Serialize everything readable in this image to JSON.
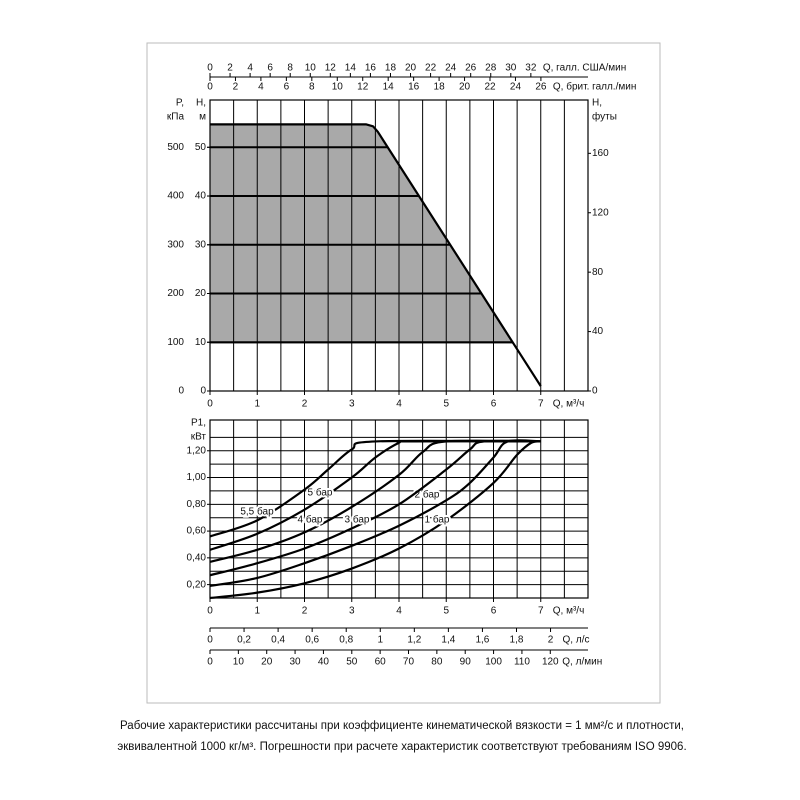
{
  "chart_data": [
    {
      "type": "line",
      "smooth": false,
      "x_label": "Q, м³/ч",
      "xlim": [
        0,
        8
      ],
      "xticks": [
        0,
        1,
        2,
        3,
        4,
        5,
        6,
        7
      ],
      "xminor": [
        0.5,
        1.5,
        2.5,
        3.5,
        4.5,
        5.5,
        6.5,
        7.5
      ],
      "extra_x_axes": [
        {
          "label": "Q, галл. США/мин",
          "side": "top",
          "xlim": [
            0,
            37.7
          ],
          "xticks": [
            0,
            2,
            4,
            6,
            8,
            10,
            12,
            14,
            16,
            18,
            20,
            22,
            24,
            26,
            28,
            30,
            32
          ]
        },
        {
          "label": "Q, брит. галл./мин",
          "side": "top",
          "xlim": [
            0,
            29.7
          ],
          "xticks": [
            0,
            2,
            4,
            6,
            8,
            10,
            12,
            14,
            16,
            18,
            20,
            22,
            24,
            26
          ]
        }
      ],
      "yaxes": [
        {
          "label": [
            "P,",
            "кПа"
          ],
          "side": "left",
          "ylim": [
            0,
            597
          ],
          "yticks": [
            0,
            100,
            200,
            300,
            400,
            500
          ],
          "grid": false
        },
        {
          "label": [
            "H,",
            "м"
          ],
          "side": "left",
          "ylim": [
            0,
            59.7
          ],
          "yticks": [
            0,
            10,
            20,
            30,
            40,
            50
          ],
          "grid": true
        },
        {
          "label": [
            "H,",
            "футы"
          ],
          "side": "right",
          "ylim": [
            0,
            195.9
          ],
          "yticks": [
            0,
            40,
            80,
            120,
            160
          ],
          "grid": false
        }
      ],
      "area_floor": 10,
      "area_color": "#a9a9a9",
      "series": [
        {
          "yaxis": 1,
          "color": "#000000",
          "x": [
            0,
            3.3,
            3.45,
            3.55,
            7
          ],
          "values": [
            54.7,
            54.7,
            54.3,
            53.2,
            1.0
          ]
        }
      ]
    },
    {
      "type": "line",
      "smooth": true,
      "x_label": "Q, м³/ч",
      "xlim": [
        0,
        8
      ],
      "xticks": [
        0,
        1,
        2,
        3,
        4,
        5,
        6,
        7
      ],
      "xminor": [
        0.5,
        1.5,
        2.5,
        3.5,
        4.5,
        5.5,
        6.5,
        7.5
      ],
      "extra_x_axes": [
        {
          "label": "Q, л/с",
          "side": "bottom",
          "xlim": [
            0,
            2.22
          ],
          "xticks": [
            0,
            {
              "value": 0.2,
              "label": "0,2"
            },
            {
              "value": 0.4,
              "label": "0,4"
            },
            {
              "value": 0.6,
              "label": "0,6"
            },
            {
              "value": 0.8,
              "label": "0,8"
            },
            1,
            {
              "value": 1.2,
              "label": "1,2"
            },
            {
              "value": 1.4,
              "label": "1,4"
            },
            {
              "value": 1.6,
              "label": "1,6"
            },
            {
              "value": 1.8,
              "label": "1,8"
            },
            2
          ]
        },
        {
          "label": "Q, л/мин",
          "side": "bottom",
          "xlim": [
            0,
            133.3
          ],
          "xticks": [
            0,
            10,
            20,
            30,
            40,
            50,
            60,
            70,
            80,
            90,
            100,
            110,
            120
          ]
        }
      ],
      "yaxes": [
        {
          "label": [
            "P1,",
            "кВт"
          ],
          "side": "left",
          "ylim": [
            0.1,
            1.43
          ],
          "yticks": [
            {
              "value": 0.2,
              "label": "0,20"
            },
            {
              "value": 0.4,
              "label": "0,40"
            },
            {
              "value": 0.6,
              "label": "0,60"
            },
            {
              "value": 0.8,
              "label": "0,80"
            },
            {
              "value": 1.0,
              "label": "1,00"
            },
            {
              "value": 1.2,
              "label": "1,20"
            }
          ],
          "yminor": [
            0.3,
            0.5,
            0.7,
            0.9,
            1.1,
            1.3
          ],
          "grid": true
        }
      ],
      "series": [
        {
          "name": "1 бар",
          "yaxis": 0,
          "color": "#000000",
          "x": [
            0,
            1,
            2,
            3,
            4,
            5,
            6,
            6.5,
            6.8,
            7
          ],
          "values": [
            0.1,
            0.14,
            0.21,
            0.32,
            0.47,
            0.68,
            0.96,
            1.17,
            1.26,
            1.27
          ]
        },
        {
          "name": "2 бар",
          "yaxis": 0,
          "color": "#000000",
          "x": [
            0,
            1,
            2,
            3,
            4,
            5,
            5.5,
            6,
            6.3,
            7
          ],
          "values": [
            0.19,
            0.25,
            0.36,
            0.49,
            0.64,
            0.83,
            0.96,
            1.15,
            1.27,
            1.27
          ]
        },
        {
          "name": "3 бар",
          "yaxis": 0,
          "color": "#000000",
          "x": [
            0,
            1,
            2,
            3,
            4,
            5,
            5.5,
            5.8,
            7
          ],
          "values": [
            0.27,
            0.36,
            0.47,
            0.62,
            0.8,
            1.06,
            1.21,
            1.27,
            1.27
          ]
        },
        {
          "name": "4 бар",
          "yaxis": 0,
          "color": "#000000",
          "x": [
            0,
            1,
            2,
            3,
            4,
            4.5,
            5,
            7
          ],
          "values": [
            0.37,
            0.46,
            0.59,
            0.78,
            1.02,
            1.19,
            1.27,
            1.27
          ]
        },
        {
          "name": "5 бар",
          "yaxis": 0,
          "color": "#000000",
          "x": [
            0,
            1,
            2,
            3,
            3.5,
            4,
            4.2,
            7
          ],
          "values": [
            0.46,
            0.58,
            0.76,
            1.0,
            1.15,
            1.26,
            1.27,
            1.27
          ]
        },
        {
          "name": "5,5 бар",
          "yaxis": 0,
          "color": "#000000",
          "x": [
            0,
            1,
            2,
            2.5,
            3,
            3.5,
            7
          ],
          "values": [
            0.56,
            0.68,
            0.91,
            1.06,
            1.21,
            1.27,
            1.27
          ]
        }
      ]
    }
  ],
  "caption": [
    "Рабочие характеристики рассчитаны при коэффициенте кинематической вязкости = 1 мм²/с и плотности,",
    "эквивалентной 1000 кг/м³. Погрешности при расчете характеристик соответствуют требованиям ISO 9906."
  ]
}
